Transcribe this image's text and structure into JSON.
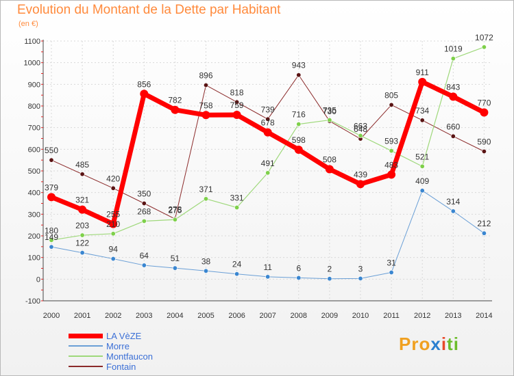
{
  "chart_data": {
    "type": "line",
    "title": "Evolution du Montant de la Dette par Habitant",
    "unit": "(en €)",
    "x": [
      "2000",
      "2001",
      "2002",
      "2003",
      "2004",
      "2005",
      "2006",
      "2007",
      "2008",
      "2009",
      "2010",
      "2011",
      "2012",
      "2013",
      "2014"
    ],
    "ylim": [
      -100,
      1100
    ],
    "yticks": [
      -100,
      0,
      100,
      200,
      300,
      400,
      500,
      600,
      700,
      800,
      900,
      1000,
      1100
    ],
    "grid": true,
    "legend_position": "bottom-left",
    "series": [
      {
        "name": "Fontain",
        "color": "#8b2a2a",
        "marker": "#5a1414",
        "width": 1,
        "values": [
          550,
          485,
          420,
          350,
          278,
          896,
          818,
          739,
          943,
          730,
          648,
          805,
          734,
          660,
          590
        ]
      },
      {
        "name": "Montfaucon",
        "color": "#9ed87a",
        "marker": "#7ed04a",
        "width": 1.2,
        "values": [
          180,
          203,
          210,
          268,
          275,
          371,
          331,
          491,
          716,
          735,
          663,
          593,
          521,
          1019,
          1072
        ]
      },
      {
        "name": "Morre",
        "color": "#6a9fd6",
        "marker": "#3a86d0",
        "width": 1,
        "values": [
          149,
          122,
          94,
          64,
          51,
          38,
          24,
          11,
          6,
          2,
          3,
          31,
          409,
          314,
          212
        ]
      },
      {
        "name": "LA VèZE",
        "color": "#ff0000",
        "marker": "#ff0000",
        "width": 7,
        "values": [
          379,
          321,
          255,
          856,
          782,
          758,
          759,
          678,
          598,
          508,
          439,
          483,
          911,
          843,
          770
        ]
      }
    ]
  },
  "legend": {
    "items": [
      {
        "name": "LA VèZE",
        "color": "#ff0000",
        "width": 7
      },
      {
        "name": "Morre",
        "color": "#6a9fd6",
        "width": 1.5
      },
      {
        "name": "Montfaucon",
        "color": "#9ed87a",
        "width": 1.5
      },
      {
        "name": "Fontain",
        "color": "#8b2a2a",
        "width": 1.5
      }
    ]
  },
  "logo": {
    "text": "Proxiti",
    "parts": [
      "Pro",
      "x",
      "i",
      "ti"
    ]
  }
}
